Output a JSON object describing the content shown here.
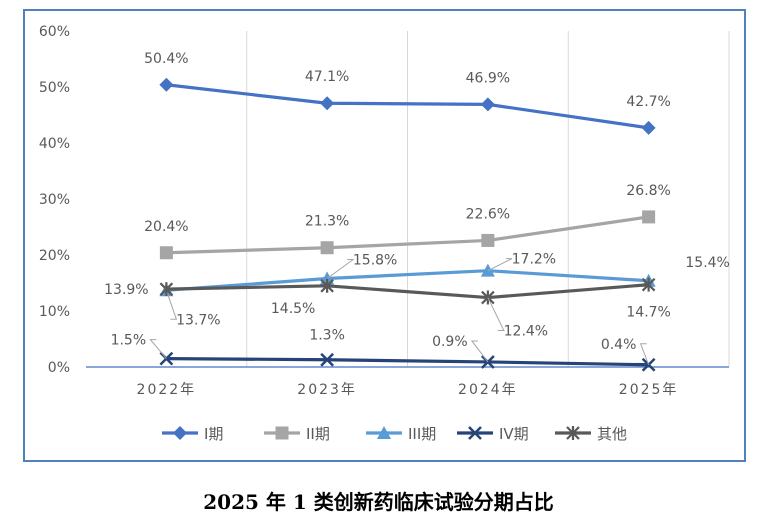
{
  "caption": "2025 年 1 类创新药临床试验分期占比",
  "chart_data": {
    "type": "line",
    "categories": [
      "2022年",
      "2023年",
      "2024年",
      "2025年"
    ],
    "ylim": [
      0,
      60
    ],
    "yticks": [
      "0%",
      "10%",
      "20%",
      "30%",
      "40%",
      "50%",
      "60%"
    ],
    "grid": "vertical",
    "legend_position": "bottom",
    "series": [
      {
        "name": "I期",
        "values": [
          50.4,
          47.1,
          46.9,
          42.7
        ],
        "labels": [
          "50.4%",
          "47.1%",
          "46.9%",
          "42.7%"
        ],
        "color": "#4472c4",
        "marker": "diamond"
      },
      {
        "name": "II期",
        "values": [
          20.4,
          21.3,
          22.6,
          26.8
        ],
        "labels": [
          "20.4%",
          "21.3%",
          "22.6%",
          "26.8%"
        ],
        "color": "#a5a5a5",
        "marker": "square"
      },
      {
        "name": "III期",
        "values": [
          13.7,
          15.8,
          17.2,
          15.4
        ],
        "labels": [
          "13.7%",
          "15.8%",
          "17.2%",
          "15.4%"
        ],
        "color": "#5b9bd5",
        "marker": "triangle"
      },
      {
        "name": "IV期",
        "values": [
          1.5,
          1.3,
          0.9,
          0.4
        ],
        "labels": [
          "1.5%",
          "1.3%",
          "0.9%",
          "0.4%"
        ],
        "color": "#264478",
        "marker": "x"
      },
      {
        "name": "其他",
        "values": [
          13.9,
          14.5,
          12.4,
          14.7
        ],
        "labels": [
          "13.9%",
          "14.5%",
          "12.4%",
          "14.7%"
        ],
        "color": "#595959",
        "marker": "star"
      }
    ]
  }
}
